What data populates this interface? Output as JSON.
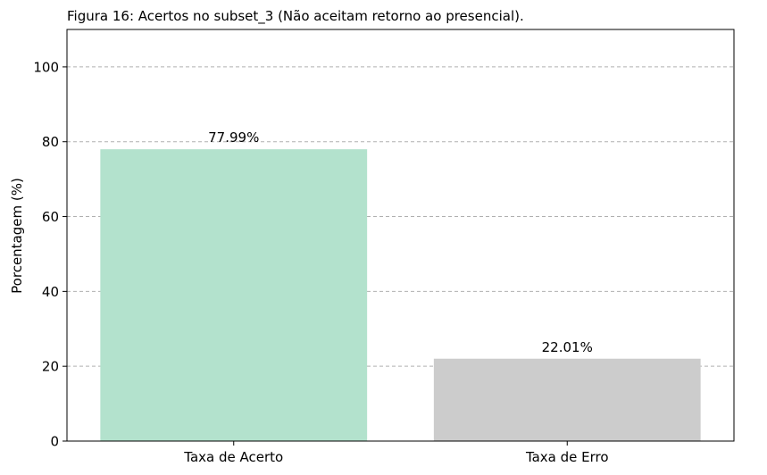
{
  "chart_data": {
    "type": "bar",
    "title": "Figura 16: Acertos no subset_3 (Não aceitam retorno ao presencial).",
    "xlabel": "",
    "ylabel": "Porcentagem (%)",
    "ylim": [
      0,
      110
    ],
    "yticks": [
      0,
      20,
      40,
      60,
      80,
      100
    ],
    "grid": "y-axis dashed",
    "categories": [
      "Taxa de Acerto",
      "Taxa de Erro"
    ],
    "values": [
      77.99,
      22.01
    ],
    "data_labels": [
      "77.99%",
      "22.01%"
    ],
    "colors": [
      "#b3e2cd",
      "#cccccc"
    ]
  }
}
